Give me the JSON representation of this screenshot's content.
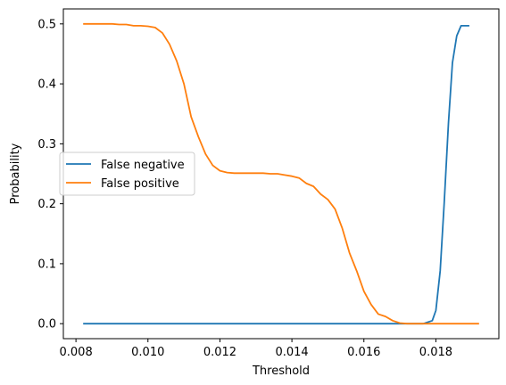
{
  "chart_data": {
    "type": "line",
    "xlabel": "Threshold",
    "ylabel": "Probability",
    "xlim": [
      0.00765,
      0.01975
    ],
    "ylim": [
      -0.025,
      0.525
    ],
    "xticks": [
      0.008,
      0.01,
      0.012,
      0.014,
      0.016,
      0.018
    ],
    "xtick_labels": [
      "0.008",
      "0.010",
      "0.012",
      "0.014",
      "0.016",
      "0.018"
    ],
    "yticks": [
      0.0,
      0.1,
      0.2,
      0.3,
      0.4,
      0.5
    ],
    "ytick_labels": [
      "0.0",
      "0.1",
      "0.2",
      "0.3",
      "0.4",
      "0.5"
    ],
    "grid": false,
    "legend_position": "center-left",
    "series": [
      {
        "name": "False negative",
        "color": "#1f77b4",
        "x": [
          0.0082,
          0.009,
          0.01,
          0.011,
          0.012,
          0.013,
          0.014,
          0.015,
          0.016,
          0.017,
          0.01765,
          0.01775,
          0.0179,
          0.018,
          0.01812,
          0.01823,
          0.01835,
          0.01846,
          0.01858,
          0.0187,
          0.01881,
          0.01893
        ],
        "y": [
          0,
          0,
          0,
          0,
          0,
          0,
          0,
          0,
          0,
          0,
          0,
          0.002,
          0.005,
          0.022,
          0.088,
          0.2,
          0.335,
          0.435,
          0.48,
          0.497,
          0.497,
          0.497
        ]
      },
      {
        "name": "False positive",
        "color": "#ff7f0e",
        "x": [
          0.0082,
          0.0084,
          0.0086,
          0.0088,
          0.009,
          0.0092,
          0.0094,
          0.0096,
          0.0098,
          0.01,
          0.0102,
          0.0104,
          0.0106,
          0.0108,
          0.011,
          0.0112,
          0.0114,
          0.0116,
          0.0118,
          0.012,
          0.0122,
          0.0124,
          0.0126,
          0.0128,
          0.013,
          0.0132,
          0.0134,
          0.0136,
          0.0138,
          0.014,
          0.0142,
          0.0144,
          0.0146,
          0.0148,
          0.015,
          0.0152,
          0.0154,
          0.0156,
          0.0158,
          0.016,
          0.0162,
          0.0164,
          0.0166,
          0.0168,
          0.017,
          0.0172,
          0.0174,
          0.0176,
          0.0178,
          0.018,
          0.0184,
          0.0188,
          0.0192
        ],
        "y": [
          0.5,
          0.5,
          0.5,
          0.5,
          0.5,
          0.499,
          0.499,
          0.497,
          0.497,
          0.496,
          0.494,
          0.485,
          0.466,
          0.438,
          0.4,
          0.345,
          0.312,
          0.283,
          0.264,
          0.255,
          0.252,
          0.251,
          0.251,
          0.251,
          0.251,
          0.251,
          0.25,
          0.25,
          0.248,
          0.246,
          0.243,
          0.234,
          0.229,
          0.216,
          0.207,
          0.191,
          0.159,
          0.118,
          0.088,
          0.054,
          0.032,
          0.016,
          0.012,
          0.005,
          0.001,
          0.0,
          0.0,
          0.0,
          0.0,
          0.0,
          0.0,
          0.0,
          0.0
        ]
      }
    ]
  }
}
